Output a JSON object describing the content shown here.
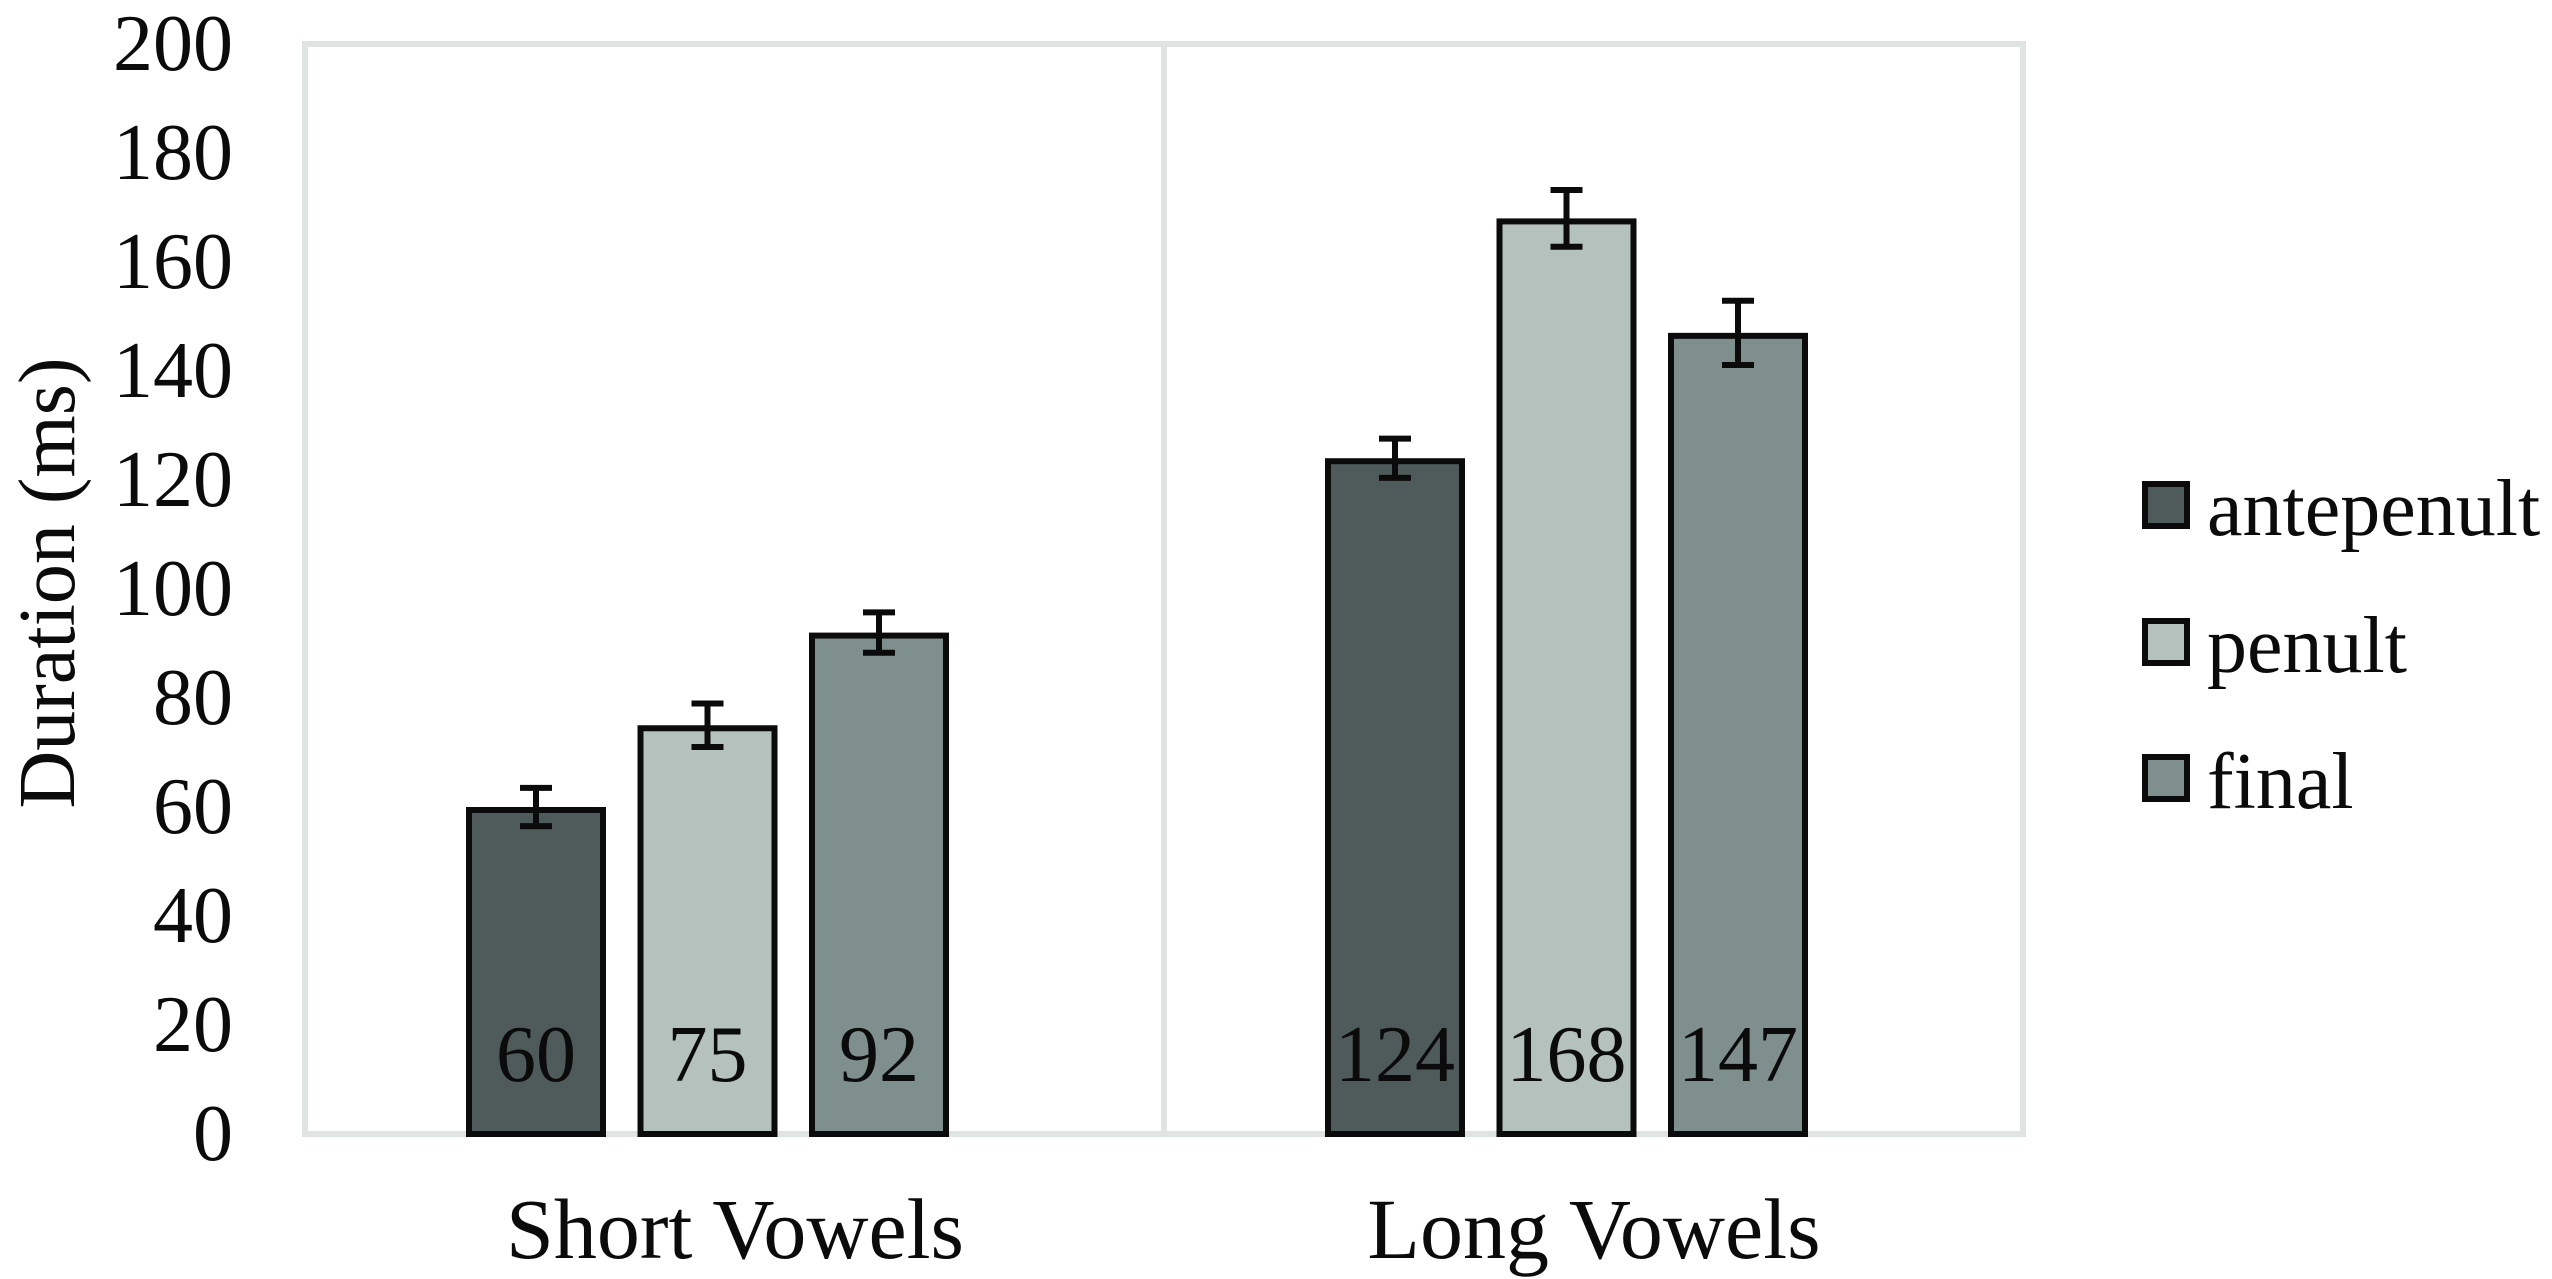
{
  "chart_data": {
    "type": "bar",
    "title": "",
    "xlabel": "",
    "ylabel": "Duration (ms)",
    "ylim": [
      0,
      200
    ],
    "yticks": [
      0,
      20,
      40,
      60,
      80,
      100,
      120,
      140,
      160,
      180,
      200
    ],
    "grid": false,
    "legend_position": "right",
    "categories": [
      "Short Vowels",
      "Long Vowels"
    ],
    "series": [
      {
        "name": "antepenult",
        "color": "#4f5b5a",
        "values": [
          60,
          124
        ],
        "errors": [
          3.5,
          3.6
        ]
      },
      {
        "name": "penult",
        "color": "#b4c1bd",
        "values": [
          75,
          168
        ],
        "errors": [
          4.0,
          5.2
        ]
      },
      {
        "name": "final",
        "color": "#7f8f8d",
        "values": [
          92,
          147
        ],
        "errors": [
          3.7,
          5.9
        ]
      }
    ],
    "data_labels": [
      [
        "60",
        "124"
      ],
      [
        "75",
        "168"
      ],
      [
        "92",
        "147"
      ]
    ]
  },
  "axis": {
    "title": "Duration (ms)",
    "ticks": [
      "0",
      "20",
      "40",
      "60",
      "80",
      "100",
      "120",
      "140",
      "160",
      "180",
      "200"
    ]
  },
  "categories": {
    "short": "Short Vowels",
    "long": "Long Vowels"
  },
  "legend": {
    "items": [
      {
        "label": "antepenult",
        "color": "#4f5b5a"
      },
      {
        "label": "penult",
        "color": "#b4c1bd"
      },
      {
        "label": "final",
        "color": "#7f8f8d"
      }
    ]
  },
  "style": {
    "frame_color": "#dfe4e3",
    "bar_outline": "#0b0b0b",
    "text_color": "#0b0b0b"
  }
}
